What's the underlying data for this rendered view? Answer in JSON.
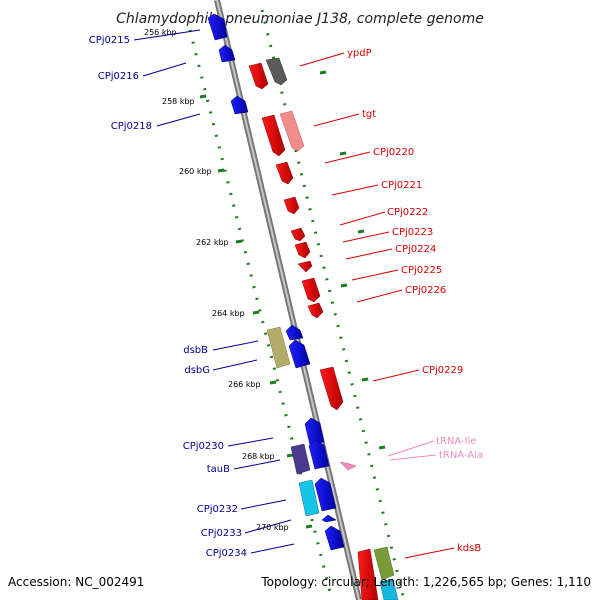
{
  "title": "Chlamydophila pneumoniae J138, complete genome",
  "footer": {
    "accession": "Accession: NC_002491",
    "topology": "Topology: circular; Length: 1,226,565 bp; Genes: 1,110"
  },
  "ticks": [
    "256 kbp",
    "258 kbp",
    "260 kbp",
    "262 kbp",
    "264 kbp",
    "266 kbp",
    "268 kbp",
    "270 kbp"
  ],
  "labels_right": [
    "ypdP",
    "tgt",
    "CPj0220",
    "CPj0221",
    "CPj0222",
    "CPj0223",
    "CPj0224",
    "CPj0225",
    "CPj0226",
    "CPj0229",
    "kdsB"
  ],
  "labels_trna": [
    "tRNA-Ile",
    "tRNA-Ala"
  ],
  "labels_left": [
    "CPj0215",
    "CPj0216",
    "CPj0218",
    "dsbB",
    "dsbG",
    "CPj0230",
    "tauB",
    "CPj0232",
    "CPj0233",
    "CPj0234"
  ],
  "colors": {
    "backbone": "#8c8c8c",
    "forward_gene": "#ff0000",
    "reverse_gene": "#0000ff",
    "tick_dots": "#1e7d1e",
    "label_right": "#d40000",
    "label_left": "#00008b",
    "label_trna": "#f08cbe"
  }
}
